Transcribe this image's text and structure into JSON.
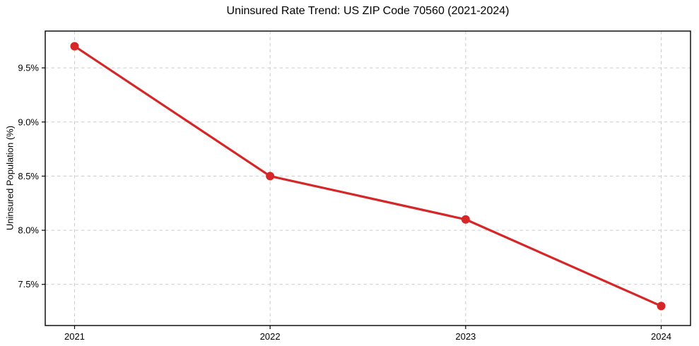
{
  "figure": {
    "background": "#ffffff",
    "spine_color": "#000000",
    "grid_color": "#cccccc",
    "tick_label_color": "#000000"
  },
  "chart_data": {
    "type": "line",
    "title": "Uninsured Rate Trend: US ZIP Code 70560 (2021-2024)",
    "xlabel": "",
    "ylabel": "Uninsured Population (%)",
    "x": [
      2021,
      2022,
      2023,
      2024
    ],
    "values": [
      9.7,
      8.5,
      8.1,
      7.3
    ],
    "x_tick_labels": [
      "2021",
      "2022",
      "2023",
      "2024"
    ],
    "y_ticks": [
      7.5,
      8.0,
      8.5,
      9.0,
      9.5
    ],
    "y_tick_labels": [
      "7.5%",
      "8.0%",
      "8.5%",
      "9.0%",
      "9.5%"
    ],
    "xlim": [
      2020.85,
      2024.15
    ],
    "ylim": [
      7.12,
      9.84
    ],
    "grid": true,
    "grid_style": "dashed",
    "legend_position": "none",
    "line_color": "#d62728",
    "marker": "circle",
    "marker_radius": 6,
    "line_width": 3.2
  }
}
